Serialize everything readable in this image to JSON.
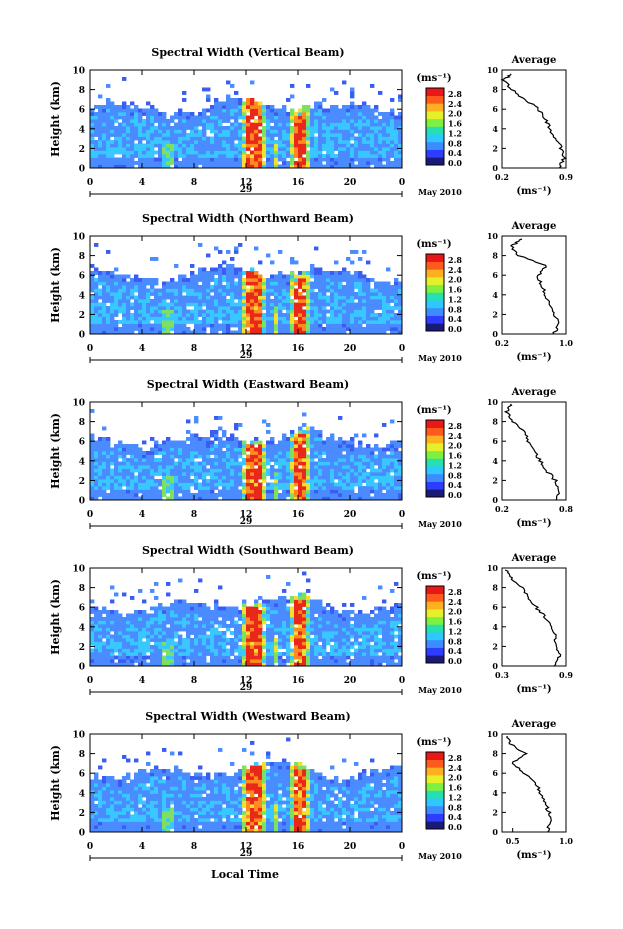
{
  "figure": {
    "date_label": "May 2010",
    "xlabel": "Local Time",
    "colorbar_unit": "(ms⁻¹)",
    "colorbar_ticks": [
      "0.0",
      "0.4",
      "0.8",
      "1.2",
      "1.6",
      "2.0",
      "2.4",
      "2.8"
    ],
    "colorbar_colors": [
      "#1a1a7a",
      "#2d3cff",
      "#3c8cff",
      "#2cc8ff",
      "#26e0b0",
      "#7ef040",
      "#e6f028",
      "#ffb020",
      "#ff5a1e",
      "#e81818"
    ],
    "heatmap_colors": {
      "background": "#ffffff",
      "low": "#3a5cf0",
      "mid": "#4a8cff",
      "cyan": "#38c8ff",
      "green": "#7ee060",
      "yellow": "#f0e030",
      "orange": "#ff8a20",
      "red": "#e82818"
    },
    "day_label": "29",
    "avg_title": "Average",
    "avg_xlabel": "(ms⁻¹)"
  },
  "chart_data": [
    {
      "type": "heatmap",
      "title": "Spectral Width (Vertical Beam)",
      "ylabel": "Height (km)",
      "xticks": [
        "0",
        "4",
        "8",
        "12",
        "16",
        "20",
        "0"
      ],
      "yticks": [
        "0",
        "2",
        "4",
        "6",
        "8",
        "10"
      ],
      "xlim": [
        0,
        24
      ],
      "ylim": [
        0,
        10
      ],
      "avg_profile": {
        "xticks": [
          "0.2",
          "0.9"
        ],
        "xlim": [
          0.2,
          0.9
        ],
        "heights": [
          0,
          1,
          2,
          3,
          4,
          5,
          6,
          7,
          8,
          9,
          9.6
        ],
        "values": [
          0.82,
          0.88,
          0.85,
          0.78,
          0.72,
          0.68,
          0.6,
          0.45,
          0.3,
          0.22,
          0.3
        ]
      }
    },
    {
      "type": "heatmap",
      "title": "Spectral Width (Northward Beam)",
      "ylabel": "Height (km)",
      "xticks": [
        "0",
        "4",
        "8",
        "12",
        "16",
        "20",
        "0"
      ],
      "yticks": [
        "0",
        "2",
        "4",
        "6",
        "8",
        "10"
      ],
      "xlim": [
        0,
        24
      ],
      "ylim": [
        0,
        10
      ],
      "avg_profile": {
        "xticks": [
          "0.2",
          "1.0"
        ],
        "xlim": [
          0.2,
          1.0
        ],
        "heights": [
          0,
          1,
          2,
          3,
          4,
          5,
          6,
          7,
          8,
          9,
          9.7
        ],
        "values": [
          0.85,
          0.9,
          0.86,
          0.8,
          0.74,
          0.7,
          0.65,
          0.75,
          0.4,
          0.32,
          0.45
        ]
      }
    },
    {
      "type": "heatmap",
      "title": "Spectral Width (Eastward Beam)",
      "ylabel": "Height (km)",
      "xticks": [
        "0",
        "4",
        "8",
        "12",
        "16",
        "20",
        "0"
      ],
      "yticks": [
        "0",
        "2",
        "4",
        "6",
        "8",
        "10"
      ],
      "xlim": [
        0,
        24
      ],
      "ylim": [
        0,
        10
      ],
      "avg_profile": {
        "xticks": [
          "0.2",
          "0.8"
        ],
        "xlim": [
          0.2,
          0.8
        ],
        "heights": [
          0,
          1,
          2,
          3,
          4,
          5,
          6,
          7,
          8,
          9,
          9.8
        ],
        "values": [
          0.72,
          0.74,
          0.7,
          0.62,
          0.56,
          0.5,
          0.45,
          0.4,
          0.3,
          0.24,
          0.28
        ]
      }
    },
    {
      "type": "heatmap",
      "title": "Spectral Width (Southward Beam)",
      "ylabel": "Height (km)",
      "xticks": [
        "0",
        "4",
        "8",
        "12",
        "16",
        "20",
        "0"
      ],
      "yticks": [
        "0",
        "2",
        "4",
        "6",
        "8",
        "10"
      ],
      "xlim": [
        0,
        24
      ],
      "ylim": [
        0,
        10
      ],
      "avg_profile": {
        "xticks": [
          "0.3",
          "0.9"
        ],
        "xlim": [
          0.3,
          0.9
        ],
        "heights": [
          0,
          1,
          2,
          3,
          4,
          5,
          6,
          7,
          8,
          9,
          9.8
        ],
        "values": [
          0.8,
          0.84,
          0.82,
          0.8,
          0.76,
          0.7,
          0.62,
          0.55,
          0.5,
          0.38,
          0.33
        ]
      }
    },
    {
      "type": "heatmap",
      "title": "Spectral Width (Westward Beam)",
      "ylabel": "Height (km)",
      "xticks": [
        "0",
        "4",
        "8",
        "12",
        "16",
        "20",
        "0"
      ],
      "yticks": [
        "0",
        "2",
        "4",
        "6",
        "8",
        "10"
      ],
      "xlim": [
        0,
        24
      ],
      "ylim": [
        0,
        10
      ],
      "avg_profile": {
        "xticks": [
          "0.5",
          "1.0"
        ],
        "xlim": [
          0.4,
          1.0
        ],
        "heights": [
          0,
          1,
          2,
          3,
          4,
          5,
          6,
          7,
          8,
          9,
          9.8
        ],
        "values": [
          0.82,
          0.86,
          0.84,
          0.8,
          0.76,
          0.72,
          0.6,
          0.5,
          0.62,
          0.48,
          0.45
        ]
      }
    }
  ]
}
